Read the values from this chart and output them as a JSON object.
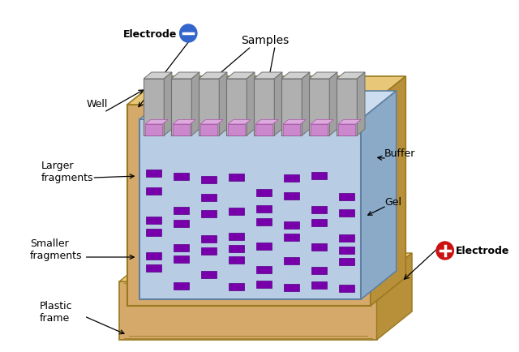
{
  "bg_color": "#ffffff",
  "frame_color": "#d4a96a",
  "frame_dark": "#b8903a",
  "frame_light": "#e8c878",
  "frame_edge": "#9a7820",
  "gel_color": "#b8cce4",
  "gel_right": "#8aaac8",
  "gel_top": "#ccddf0",
  "gel_edge": "#6080a0",
  "well_front": "#b0b0b0",
  "well_top": "#d0d0d0",
  "well_right": "#909090",
  "well_edge": "#707070",
  "sample_color": "#cc88cc",
  "sample_top": "#ddaadd",
  "band_color": "#7700aa",
  "band_edge": "#550088",
  "electrode_neg_color": "#3366cc",
  "electrode_pos_color": "#cc1111",
  "labels": {
    "electrode_neg": "Electrode",
    "electrode_pos": "Electrode",
    "samples": "Samples",
    "well": "Well",
    "larger_fragments": "Larger\nfragments",
    "smaller_fragments": "Smaller\nfragments",
    "plastic_frame": "Plastic\nframe",
    "buffer": "Buffer",
    "gel": "Gel"
  },
  "num_lanes": 8,
  "figure_width": 6.4,
  "figure_height": 4.35
}
